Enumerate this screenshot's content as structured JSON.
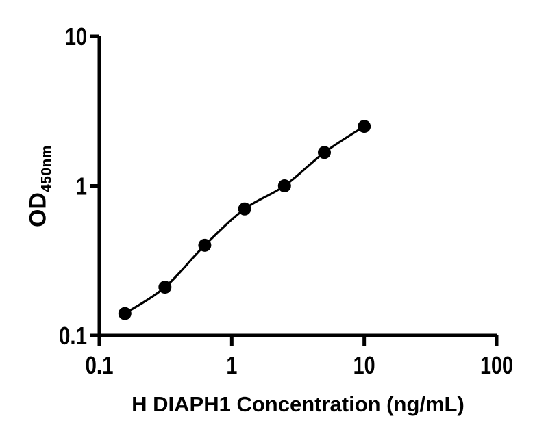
{
  "page": {
    "background_color": "#ffffff"
  },
  "chart_data": {
    "type": "scatter",
    "subtype": "line-through-points",
    "title": "",
    "xlabel": "H DIAPH1 Concentration (ng/mL)",
    "ylabel_main": "OD",
    "ylabel_sub": "450nm",
    "x_scale": "log",
    "y_scale": "log",
    "xlim": [
      0.1,
      100
    ],
    "ylim": [
      0.1,
      10
    ],
    "grid": false,
    "legend": false,
    "x_ticks": [
      {
        "value": 0.1,
        "label": "0.1"
      },
      {
        "value": 1,
        "label": "1"
      },
      {
        "value": 10,
        "label": "10"
      },
      {
        "value": 100,
        "label": "100"
      }
    ],
    "y_ticks": [
      {
        "value": 0.1,
        "label": "0.1"
      },
      {
        "value": 1,
        "label": "1"
      },
      {
        "value": 10,
        "label": "10"
      }
    ],
    "points": [
      {
        "x": 0.156,
        "y": 0.14
      },
      {
        "x": 0.313,
        "y": 0.21
      },
      {
        "x": 0.625,
        "y": 0.4
      },
      {
        "x": 1.25,
        "y": 0.7
      },
      {
        "x": 2.5,
        "y": 1.0
      },
      {
        "x": 5,
        "y": 1.67
      },
      {
        "x": 10,
        "y": 2.5
      }
    ],
    "colors": {
      "axis": "#000000",
      "marker": "#000000",
      "line": "#000000",
      "text": "#000000",
      "background": "#ffffff"
    }
  }
}
